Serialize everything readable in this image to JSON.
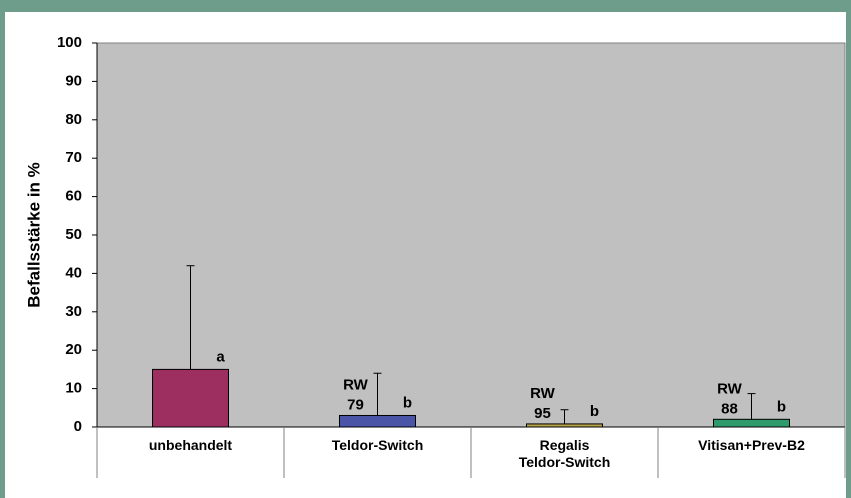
{
  "chart_data": {
    "type": "bar",
    "y_label": "Befallsstärke in %",
    "categories": [
      "unbehandelt",
      "Teldor-Switch",
      "Regalis\nTeldor-Switch",
      "Vitisan+Prev-B2"
    ],
    "values": [
      15,
      3,
      0.8,
      2
    ],
    "errors": [
      27,
      11,
      3.7,
      6.7
    ],
    "colors": [
      "#9c2f5f",
      "#4a55a8",
      "#b8a448",
      "#2f9a6b"
    ],
    "letters": [
      "a",
      "b",
      "b",
      "b"
    ],
    "rw_label": "RW",
    "rw_values": [
      null,
      79,
      95,
      88
    ],
    "ylim": [
      0,
      100
    ],
    "yticks": [
      0,
      10,
      20,
      30,
      40,
      50,
      60,
      70,
      80,
      90,
      100
    ],
    "grid": false
  }
}
